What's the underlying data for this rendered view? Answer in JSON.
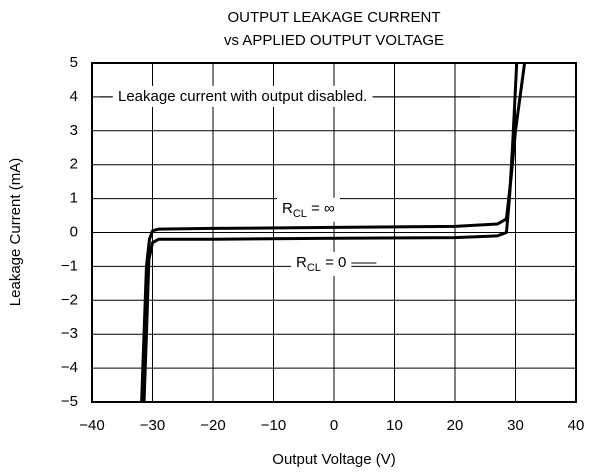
{
  "chart_data": {
    "type": "line",
    "title": [
      "OUTPUT LEAKAGE CURRENT",
      "vs APPLIED OUTPUT VOLTAGE"
    ],
    "xlabel": "Output Voltage (V)",
    "ylabel": "Leakage Current (mA)",
    "annotation": "Leakage current with output disabled.",
    "xlim": [
      -40,
      40
    ],
    "xticks": [
      {
        "value": -40,
        "label": "−40"
      },
      {
        "value": -30,
        "label": "−30"
      },
      {
        "value": -20,
        "label": "−20"
      },
      {
        "value": -10,
        "label": "−10"
      },
      0,
      10,
      20,
      30,
      40
    ],
    "ylim": [
      -5,
      5
    ],
    "yticks": [
      {
        "value": -5,
        "label": "−5"
      },
      {
        "value": -4,
        "label": "−4"
      },
      {
        "value": -3,
        "label": "−3"
      },
      {
        "value": -2,
        "label": "−2"
      },
      {
        "value": -1,
        "label": "−1"
      },
      0,
      1,
      2,
      3,
      4,
      5
    ],
    "grid": true,
    "series": [
      {
        "label": [
          "R",
          "CL",
          " = ∞"
        ],
        "color": "#000000",
        "x": [
          -31.8,
          -31,
          -30.5,
          -30,
          -29,
          -20,
          0,
          20,
          27,
          28.5,
          29.2,
          30,
          31.5
        ],
        "values": [
          -5,
          -1,
          -0.2,
          0.05,
          0.1,
          0.12,
          0.15,
          0.18,
          0.25,
          0.4,
          1.5,
          3,
          5
        ]
      },
      {
        "label": [
          "R",
          "CL",
          " = 0"
        ],
        "color": "#000000",
        "x": [
          -31.4,
          -31,
          -30.6,
          -30,
          -29,
          -20,
          0,
          20,
          27,
          28.5,
          29,
          29.5,
          30.2
        ],
        "values": [
          -5,
          -3,
          -0.8,
          -0.3,
          -0.2,
          -0.2,
          -0.17,
          -0.15,
          -0.1,
          0,
          1,
          2.5,
          5
        ]
      }
    ]
  }
}
